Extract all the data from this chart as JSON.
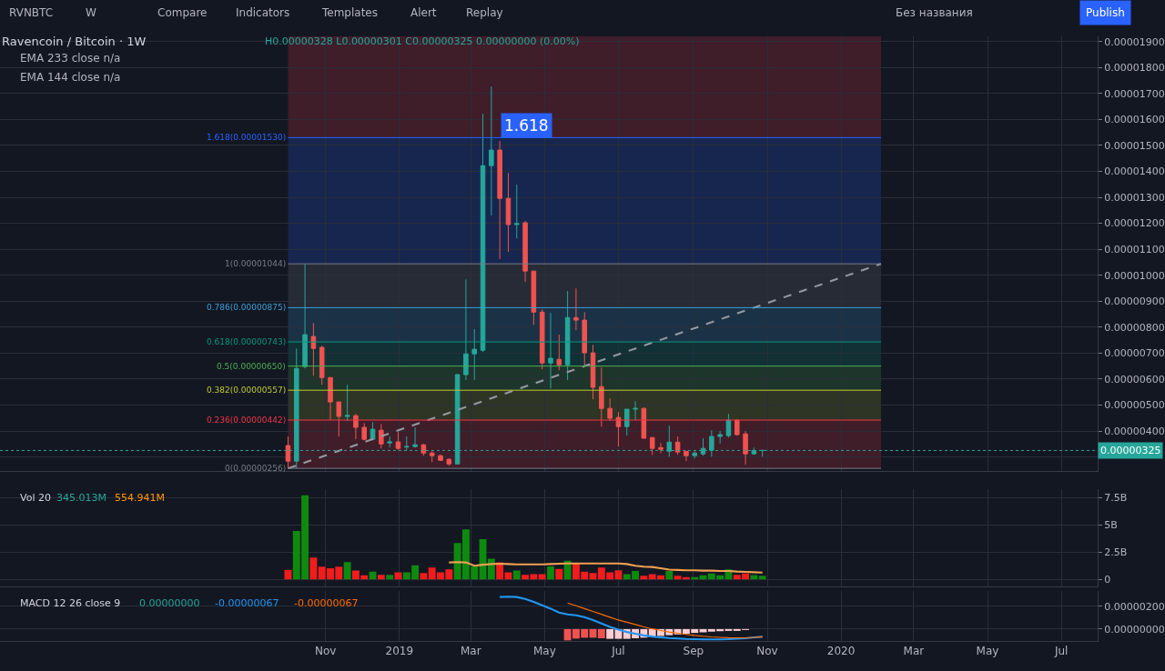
{
  "chart_data": [
    {
      "type": "candlestick",
      "title": "Ravencoin / Bitcoin · 1W",
      "subtitle": "H0.00000328 L0.00000301 C0.00000325 0.00000000 (0.00%)",
      "annotations": [
        "RVNBTC",
        "W",
        "Compare",
        "Indicators",
        "Templates",
        "Alert",
        "Replay",
        "Без названия",
        "Publish",
        "EMA 233 close n/a",
        "EMA 144 close n/a",
        "1.618"
      ],
      "x": [
        "2018-10-01",
        "2018-10-08",
        "2018-10-15",
        "2018-10-22",
        "2018-10-29",
        "2018-11-05",
        "2018-11-12",
        "2018-11-19",
        "2018-11-26",
        "2018-12-03",
        "2018-12-10",
        "2018-12-17",
        "2018-12-24",
        "2018-12-31",
        "2019-01-07",
        "2019-01-14",
        "2019-01-21",
        "2019-01-28",
        "2019-02-04",
        "2019-02-11",
        "2019-02-18",
        "2019-02-25",
        "2019-03-04",
        "2019-03-11",
        "2019-03-18",
        "2019-03-25",
        "2019-04-01",
        "2019-04-08",
        "2019-04-15",
        "2019-04-22",
        "2019-04-29",
        "2019-05-06",
        "2019-05-13",
        "2019-05-20",
        "2019-05-27",
        "2019-06-03",
        "2019-06-10",
        "2019-06-17",
        "2019-06-24",
        "2019-07-01",
        "2019-07-08",
        "2019-07-15",
        "2019-07-22",
        "2019-07-29",
        "2019-08-05",
        "2019-08-12",
        "2019-08-19",
        "2019-08-26",
        "2019-09-02",
        "2019-09-09",
        "2019-09-16",
        "2019-09-23",
        "2019-09-30",
        "2019-10-07",
        "2019-10-14",
        "2019-10-21",
        "2019-10-28"
      ],
      "ohlc": [
        [
          3.44e-06,
          3.79e-06,
          2.56e-06,
          2.84e-06
        ],
        [
          2.84e-06,
          7.18e-06,
          2.56e-06,
          6.41e-06
        ],
        [
          6.48e-06,
          1.044e-05,
          6.41e-06,
          7.71e-06
        ],
        [
          7.64e-06,
          8.16e-06,
          6.13e-06,
          7.18e-06
        ],
        [
          7.22e-06,
          7.29e-06,
          5.78e-06,
          6.06e-06
        ],
        [
          6.06e-06,
          6.06e-06,
          4.42e-06,
          5.12e-06
        ],
        [
          5.12e-06,
          5.12e-06,
          3.79e-06,
          4.56e-06
        ],
        [
          4.56e-06,
          5.78e-06,
          4.38e-06,
          4.6e-06
        ],
        [
          4.59e-06,
          4.66e-06,
          3.68e-06,
          4.14e-06
        ],
        [
          4.14e-06,
          4.3e-06,
          3.64e-06,
          3.68e-06
        ],
        [
          3.68e-06,
          4.34e-06,
          3.64e-06,
          4.07e-06
        ],
        [
          4.03e-06,
          4.27e-06,
          3.33e-06,
          3.5e-06
        ],
        [
          3.54e-06,
          3.79e-06,
          3.36e-06,
          3.58e-06
        ],
        [
          3.58e-06,
          3.96e-06,
          3.26e-06,
          3.33e-06
        ],
        [
          3.38e-06,
          3.79e-06,
          3.26e-06,
          3.4e-06
        ],
        [
          3.4e-06,
          4.14e-06,
          3.36e-06,
          3.47e-06
        ],
        [
          3.47e-06,
          3.5e-06,
          3.05e-06,
          3.15e-06
        ],
        [
          3.15e-06,
          3.26e-06,
          2.8e-06,
          3.05e-06
        ],
        [
          3.05e-06,
          3.08e-06,
          2.84e-06,
          2.87e-06
        ],
        [
          2.91e-06,
          2.95e-06,
          2.66e-06,
          2.73e-06
        ],
        [
          2.73e-06,
          6.2e-06,
          2.7e-06,
          6.17e-06
        ],
        [
          6.17e-06,
          9.84e-06,
          5.96e-06,
          6.97e-06
        ],
        [
          6.97e-06,
          7.92e-06,
          5.96e-06,
          7.15e-06
        ],
        [
          7.11e-06,
          1.622e-05,
          7.04e-06,
          1.422e-05
        ],
        [
          1.422e-05,
          1.727e-05,
          1.23e-05,
          1.482e-05
        ],
        [
          1.482e-05,
          1.517e-05,
          1.062e-05,
          1.296e-05
        ],
        [
          1.296e-05,
          1.394e-05,
          1.09e-05,
          1.195e-05
        ],
        [
          1.195e-05,
          1.349e-05,
          1.142e-05,
          1.199e-05
        ],
        [
          1.202e-05,
          1.209e-05,
          9.74e-06,
          1.016e-05
        ],
        [
          1.016e-05,
          1.016e-05,
          8.09e-06,
          8.58e-06
        ],
        [
          8.58e-06,
          8.69e-06,
          6.38e-06,
          6.62e-06
        ],
        [
          6.62e-06,
          8.55e-06,
          5.64e-06,
          6.8e-06
        ],
        [
          6.76e-06,
          7.71e-06,
          6.34e-06,
          6.55e-06
        ],
        [
          6.55e-06,
          9.39e-06,
          5.96e-06,
          8.37e-06
        ],
        [
          8.37e-06,
          9.49e-06,
          7.88e-06,
          8.27e-06
        ],
        [
          8.27e-06,
          8.58e-06,
          6.48e-06,
          7.01e-06
        ],
        [
          7.01e-06,
          7.32e-06,
          5.22e-06,
          5.68e-06
        ],
        [
          5.71e-06,
          6.45e-06,
          4.17e-06,
          4.87e-06
        ],
        [
          4.87e-06,
          5.26e-06,
          4.38e-06,
          4.49e-06
        ],
        [
          4.52e-06,
          4.73e-06,
          3.4e-06,
          4.17e-06
        ],
        [
          4.17e-06,
          4.84e-06,
          3.82e-06,
          4.84e-06
        ],
        [
          4.84e-06,
          5.15e-06,
          4.42e-06,
          4.87e-06
        ],
        [
          4.87e-06,
          4.91e-06,
          3.72e-06,
          3.72e-06
        ],
        [
          3.75e-06,
          3.75e-06,
          3.08e-06,
          3.33e-06
        ],
        [
          3.36e-06,
          3.54e-06,
          3.15e-06,
          3.29e-06
        ],
        [
          3.22e-06,
          4.21e-06,
          3.01e-06,
          3.57e-06
        ],
        [
          3.57e-06,
          3.79e-06,
          3.08e-06,
          3.19e-06
        ],
        [
          3.22e-06,
          3.22e-06,
          2.84e-06,
          3.05e-06
        ],
        [
          3.05e-06,
          3.22e-06,
          2.94e-06,
          3.15e-06
        ],
        [
          3.12e-06,
          3.72e-06,
          3.05e-06,
          3.33e-06
        ],
        [
          3.26e-06,
          4.03e-06,
          3.01e-06,
          3.79e-06
        ],
        [
          3.79e-06,
          4e-06,
          3.51e-06,
          3.86e-06
        ],
        [
          3.82e-06,
          4.66e-06,
          3.75e-06,
          4.42e-06
        ],
        [
          4.42e-06,
          4.45e-06,
          3.82e-06,
          3.86e-06
        ],
        [
          3.89e-06,
          4e-06,
          2.7e-06,
          3.12e-06
        ],
        [
          3.12e-06,
          3.36e-06,
          3.08e-06,
          3.25e-06
        ],
        [
          3.25e-06,
          3.28e-06,
          3.01e-06,
          3.25e-06
        ]
      ],
      "colors": [
        "#ef5350",
        "#26a69a",
        "#26a69a",
        "#ef5350",
        "#ef5350",
        "#ef5350",
        "#ef5350",
        "#26a69a",
        "#ef5350",
        "#ef5350",
        "#26a69a",
        "#ef5350",
        "#26a69a",
        "#ef5350",
        "#26a69a",
        "#26a69a",
        "#ef5350",
        "#ef5350",
        "#ef5350",
        "#ef5350",
        "#26a69a",
        "#26a69a",
        "#26a69a",
        "#26a69a",
        "#26a69a",
        "#ef5350",
        "#ef5350",
        "#26a69a",
        "#ef5350",
        "#ef5350",
        "#ef5350",
        "#26a69a",
        "#ef5350",
        "#26a69a",
        "#ef5350",
        "#ef5350",
        "#ef5350",
        "#ef5350",
        "#ef5350",
        "#ef5350",
        "#26a69a",
        "#26a69a",
        "#ef5350",
        "#ef5350",
        "#ef5350",
        "#26a69a",
        "#ef5350",
        "#ef5350",
        "#26a69a",
        "#26a69a",
        "#26a69a",
        "#26a69a",
        "#26a69a",
        "#ef5350",
        "#ef5350",
        "#26a69a",
        "#26a69a"
      ],
      "series": [
        {
          "type": "line",
          "x": [
            "2018-10-01",
            "2020-02-03"
          ],
          "values": [
            2.56e-06,
            1.044e-05
          ],
          "color": "#9598a1",
          "line_style": "dashed"
        }
      ],
      "ref_lines": [
        {
          "axis": "y",
          "value": 2.56e-06,
          "label": "0(0.00000256)",
          "color": "#787b86"
        },
        {
          "axis": "y",
          "value": 4.42e-06,
          "label": "0.236(0.00000442)",
          "color": "#f23645"
        },
        {
          "axis": "y",
          "value": 5.57e-06,
          "label": "0.382(0.00000557)",
          "color": "#c0ca33"
        },
        {
          "axis": "y",
          "value": 6.5e-06,
          "label": "0.5(0.00000650)",
          "color": "#4caf50"
        },
        {
          "axis": "y",
          "value": 7.43e-06,
          "label": "0.618(0.00000743)",
          "color": "#089981"
        },
        {
          "axis": "y",
          "value": 8.75e-06,
          "label": "0.786(0.00000875)",
          "color": "#3ca0d8"
        },
        {
          "axis": "y",
          "value": 1.044e-05,
          "label": "1(0.00001044)",
          "color": "#787b86"
        },
        {
          "axis": "y",
          "value": 1.53e-05,
          "label": "1.618(0.00001530)",
          "color": "#2962ff"
        },
        {
          "axis": "y",
          "value": 3.25e-06,
          "label": "0.00000325",
          "color": "#26a69a",
          "line_style": "dotted"
        }
      ],
      "bands": [
        {
          "axis": "y",
          "from": 2.56e-06,
          "to": 4.42e-06,
          "color": "#f23645"
        },
        {
          "axis": "y",
          "from": 4.42e-06,
          "to": 5.57e-06,
          "color": "#9ab030"
        },
        {
          "axis": "y",
          "from": 5.57e-06,
          "to": 6.5e-06,
          "color": "#4caf50"
        },
        {
          "axis": "y",
          "from": 6.5e-06,
          "to": 7.43e-06,
          "color": "#089981"
        },
        {
          "axis": "y",
          "from": 7.43e-06,
          "to": 8.75e-06,
          "color": "#3ca0d8"
        },
        {
          "axis": "y",
          "from": 8.75e-06,
          "to": 1.044e-05,
          "color": "#787b86"
        },
        {
          "axis": "y",
          "from": 1.044e-05,
          "to": 1.53e-05,
          "color": "#2962ff"
        },
        {
          "axis": "y",
          "from": 1.53e-05,
          "to": 1.92e-05,
          "color": "#f23645"
        }
      ],
      "xlim": [
        "2018-02-05",
        "2020-07-31"
      ],
      "xticks": [
        {
          "value": "2018-11-01",
          "label": null
        },
        {
          "value": "2019-01-01",
          "label": null
        },
        {
          "value": "2019-03-01",
          "label": null
        },
        {
          "value": "2019-05-01",
          "label": null
        },
        {
          "value": "2019-07-01",
          "label": null
        },
        {
          "value": "2019-09-01",
          "label": null
        },
        {
          "value": "2019-11-01",
          "label": null
        },
        {
          "value": "2020-01-01",
          "label": null
        },
        {
          "value": "2020-03-01",
          "label": null
        },
        {
          "value": "2020-05-01",
          "label": null
        },
        {
          "value": "2020-07-01",
          "label": null
        }
      ],
      "ylim": [
        2.45e-06,
        1.92e-05
      ],
      "yticks": [
        {
          "value": 3e-06,
          "label": null
        },
        {
          "value": 4e-06,
          "label": "0.00000400"
        },
        {
          "value": 5e-06,
          "label": "0.00000500"
        },
        {
          "value": 6e-06,
          "label": "0.00000600"
        },
        {
          "value": 7e-06,
          "label": "0.00000700"
        },
        {
          "value": 8e-06,
          "label": "0.00000800"
        },
        {
          "value": 9e-06,
          "label": "0.00000900"
        },
        {
          "value": 1e-05,
          "label": "0.00001000"
        },
        {
          "value": 1.1e-05,
          "label": "0.00001100"
        },
        {
          "value": 1.2e-05,
          "label": "0.00001200"
        },
        {
          "value": 1.3e-05,
          "label": "0.00001300"
        },
        {
          "value": 1.4e-05,
          "label": "0.00001400"
        },
        {
          "value": 1.5e-05,
          "label": "0.00001500"
        },
        {
          "value": 1.6e-05,
          "label": "0.00001600"
        },
        {
          "value": 1.7e-05,
          "label": "0.00001700"
        },
        {
          "value": 1.8e-05,
          "label": "0.00001800"
        },
        {
          "value": 1.9e-05,
          "label": "0.00001900"
        }
      ],
      "grid": true,
      "tick_labels": "y"
    },
    {
      "type": "bar",
      "title": "Vol 20",
      "annotations": [
        "345.013M",
        "554.941M"
      ],
      "x": [
        "2018-10-01",
        "2018-10-08",
        "2018-10-15",
        "2018-10-22",
        "2018-10-29",
        "2018-11-05",
        "2018-11-12",
        "2018-11-19",
        "2018-11-26",
        "2018-12-03",
        "2018-12-10",
        "2018-12-17",
        "2018-12-24",
        "2018-12-31",
        "2019-01-07",
        "2019-01-14",
        "2019-01-21",
        "2019-01-28",
        "2019-02-04",
        "2019-02-11",
        "2019-02-18",
        "2019-02-25",
        "2019-03-04",
        "2019-03-11",
        "2019-03-18",
        "2019-03-25",
        "2019-04-01",
        "2019-04-08",
        "2019-04-15",
        "2019-04-22",
        "2019-04-29",
        "2019-05-06",
        "2019-05-13",
        "2019-05-20",
        "2019-05-27",
        "2019-06-03",
        "2019-06-10",
        "2019-06-17",
        "2019-06-24",
        "2019-07-01",
        "2019-07-08",
        "2019-07-15",
        "2019-07-22",
        "2019-07-29",
        "2019-08-05",
        "2019-08-12",
        "2019-08-19",
        "2019-08-26",
        "2019-09-02",
        "2019-09-09",
        "2019-09-16",
        "2019-09-23",
        "2019-09-30",
        "2019-10-07",
        "2019-10-14",
        "2019-10-21",
        "2019-10-28"
      ],
      "series": [
        {
          "type": "bar",
          "values": [
            860000000.0,
            4430000000.0,
            7710000000.0,
            1990000000.0,
            1160000000.0,
            1010000000.0,
            1160000000.0,
            1580000000.0,
            800000000.0,
            360000000.0,
            710000000.0,
            420000000.0,
            420000000.0,
            650000000.0,
            650000000.0,
            1280000000.0,
            570000000.0,
            1070000000.0,
            650000000.0,
            920000000.0,
            3330000000.0,
            4580000000.0,
            1190000000.0,
            3690000000.0,
            1900000000.0,
            1550000000.0,
            650000000.0,
            800000000.0,
            420000000.0,
            480000000.0,
            480000000.0,
            1190000000.0,
            950000000.0,
            1700000000.0,
            1460000000.0,
            710000000.0,
            570000000.0,
            1070000000.0,
            650000000.0,
            830000000.0,
            480000000.0,
            770000000.0,
            330000000.0,
            480000000.0,
            360000000.0,
            770000000.0,
            330000000.0,
            210000000.0,
            210000000.0,
            360000000.0,
            540000000.0,
            360000000.0,
            920000000.0,
            420000000.0,
            540000000.0,
            390000000.0,
            330000000.0
          ],
          "colors": [
            "#f21c1c",
            "#0e8a0e",
            "#0e8a0e",
            "#f21c1c",
            "#f21c1c",
            "#f21c1c",
            "#f21c1c",
            "#0e8a0e",
            "#f21c1c",
            "#f21c1c",
            "#0e8a0e",
            "#f21c1c",
            "#0e8a0e",
            "#f21c1c",
            "#0e8a0e",
            "#0e8a0e",
            "#f21c1c",
            "#f21c1c",
            "#f21c1c",
            "#f21c1c",
            "#0e8a0e",
            "#0e8a0e",
            "#0e8a0e",
            "#0e8a0e",
            "#0e8a0e",
            "#f21c1c",
            "#f21c1c",
            "#0e8a0e",
            "#f21c1c",
            "#f21c1c",
            "#f21c1c",
            "#0e8a0e",
            "#f21c1c",
            "#0e8a0e",
            "#f21c1c",
            "#f21c1c",
            "#f21c1c",
            "#f21c1c",
            "#f21c1c",
            "#f21c1c",
            "#0e8a0e",
            "#0e8a0e",
            "#f21c1c",
            "#f21c1c",
            "#f21c1c",
            "#0e8a0e",
            "#f21c1c",
            "#f21c1c",
            "#0e8a0e",
            "#0e8a0e",
            "#0e8a0e",
            "#0e8a0e",
            "#0e8a0e",
            "#f21c1c",
            "#f21c1c",
            "#0e8a0e",
            "#0e8a0e"
          ]
        },
        {
          "type": "line",
          "color": "#f0a050",
          "values": [
            null,
            null,
            null,
            null,
            null,
            null,
            null,
            null,
            null,
            null,
            null,
            null,
            null,
            null,
            null,
            null,
            null,
            null,
            null,
            1550000000.0,
            1580000000.0,
            1550000000.0,
            1250000000.0,
            1340000000.0,
            1400000000.0,
            1430000000.0,
            1400000000.0,
            1370000000.0,
            1370000000.0,
            1370000000.0,
            1370000000.0,
            1400000000.0,
            1430000000.0,
            1460000000.0,
            1460000000.0,
            1460000000.0,
            1460000000.0,
            1460000000.0,
            1460000000.0,
            1460000000.0,
            1400000000.0,
            1250000000.0,
            1160000000.0,
            1130000000.0,
            1010000000.0,
            890000000.0,
            860000000.0,
            830000000.0,
            830000000.0,
            800000000.0,
            800000000.0,
            770000000.0,
            770000000.0,
            710000000.0,
            680000000.0,
            650000000.0,
            620000000.0
          ]
        }
      ],
      "xlim": [
        "2018-02-05",
        "2020-07-31"
      ],
      "xticks": [
        {
          "value": "2018-11-01",
          "label": null
        },
        {
          "value": "2019-01-01",
          "label": null
        },
        {
          "value": "2019-03-01",
          "label": null
        },
        {
          "value": "2019-05-01",
          "label": null
        },
        {
          "value": "2019-07-01",
          "label": null
        },
        {
          "value": "2019-09-01",
          "label": null
        },
        {
          "value": "2019-11-01",
          "label": null
        },
        {
          "value": "2020-01-01",
          "label": null
        },
        {
          "value": "2020-03-01",
          "label": null
        },
        {
          "value": "2020-05-01",
          "label": null
        },
        {
          "value": "2020-07-01",
          "label": null
        }
      ],
      "ylim": [
        -670000000.0,
        8250000000.0
      ],
      "yticks": [
        0,
        {
          "value": 2500000000.0,
          "label": "2.5B"
        },
        {
          "value": 5000000000.0,
          "label": "5B"
        },
        {
          "value": 7500000000.0,
          "label": "7.5B"
        }
      ],
      "grid": true,
      "tick_labels": "y"
    },
    {
      "type": "bar",
      "title": "MACD 12 26 close 9",
      "annotations": [
        "0.00000000",
        "-0.00000067",
        "-0.00000067"
      ],
      "x": [
        "2019-03-25",
        "2019-04-01",
        "2019-04-08",
        "2019-04-15",
        "2019-04-22",
        "2019-04-29",
        "2019-05-06",
        "2019-05-13",
        "2019-05-20",
        "2019-05-27",
        "2019-06-03",
        "2019-06-10",
        "2019-06-17",
        "2019-06-24",
        "2019-07-01",
        "2019-07-08",
        "2019-07-15",
        "2019-07-22",
        "2019-07-29",
        "2019-08-05",
        "2019-08-12",
        "2019-08-19",
        "2019-08-26",
        "2019-09-02",
        "2019-09-09",
        "2019-09-16",
        "2019-09-23",
        "2019-09-30",
        "2019-10-07",
        "2019-10-14",
        "2019-10-21",
        "2019-10-28"
      ],
      "series": [
        {
          "type": "bar",
          "values": [
            null,
            null,
            null,
            null,
            null,
            null,
            null,
            null,
            -9.9e-07,
            -8.3e-07,
            -7.5e-07,
            -7.5e-07,
            -8e-07,
            -8.5e-07,
            -8.5e-07,
            -8.5e-07,
            -8e-07,
            -7.5e-07,
            -6.7e-07,
            -6e-07,
            -5.3e-07,
            -4.6e-07,
            -4e-07,
            -3.3e-07,
            -2.8e-07,
            -2.2e-07,
            -1.8e-07,
            -1.3e-07,
            -8e-08,
            -4e-08,
            0,
            0
          ],
          "colors": [
            "#ef5350",
            "#ef5350",
            "#ef5350",
            "#ef5350",
            "#ef5350",
            "#ef5350",
            "#ef5350",
            "#ef5350",
            "#ef5350",
            "#ef5350",
            "#ef5350",
            "#ef5350",
            "#ef5350",
            "#ffcdd2",
            "#ffcdd2",
            "#ffcdd2",
            "#ffcdd2",
            "#ffcdd2",
            "#ffcdd2",
            "#ffcdd2",
            "#ffcdd2",
            "#ffcdd2",
            "#ffcdd2",
            "#ffcdd2",
            "#ffcdd2",
            "#ffcdd2",
            "#ffcdd2",
            "#ffcdd2",
            "#ffcdd2",
            "#ffcdd2",
            "#ffcdd2",
            "#ffcdd2"
          ]
        },
        {
          "type": "line",
          "color": "#2196f3",
          "values": [
            2.82e-06,
            2.85e-06,
            2.82e-06,
            2.65e-06,
            2.4e-06,
            2.1e-06,
            1.8e-06,
            1.45e-06,
            1.3e-06,
            1.22e-06,
            1.05e-06,
            8e-07,
            5e-07,
            2e-07,
            -5e-08,
            -2.5e-07,
            -4e-07,
            -5.5e-07,
            -6.5e-07,
            -7.2e-07,
            -7.8e-07,
            -8.2e-07,
            -8.6e-07,
            -8.8e-07,
            -9e-07,
            -9e-07,
            -9e-07,
            -8.8e-07,
            -8.4e-07,
            -8e-07,
            -7.2e-07,
            -6.7e-07
          ]
        },
        {
          "type": "line",
          "color": "#ff6d00",
          "values": [
            null,
            null,
            null,
            null,
            null,
            null,
            null,
            null,
            2.29e-06,
            2.05e-06,
            1.8e-06,
            1.55e-06,
            1.3e-06,
            1.05e-06,
            8e-07,
            6e-07,
            4e-07,
            2e-07,
            2e-08,
            -1.2e-07,
            -2.5e-07,
            -3.6e-07,
            -4.6e-07,
            -5.5e-07,
            -6.2e-07,
            -6.8e-07,
            -7.2e-07,
            -7.5e-07,
            -7.6e-07,
            -7.6e-07,
            -7.2e-07,
            -6.7e-07
          ]
        }
      ],
      "xlim": [
        "2018-02-05",
        "2020-07-31"
      ],
      "xticks": [
        {
          "value": "2018-11-01",
          "label": "Nov"
        },
        {
          "value": "2019-01-01",
          "label": "2019"
        },
        {
          "value": "2019-03-01",
          "label": "Mar"
        },
        {
          "value": "2019-05-01",
          "label": "May"
        },
        {
          "value": "2019-07-01",
          "label": "Jul"
        },
        {
          "value": "2019-09-01",
          "label": "Sep"
        },
        {
          "value": "2019-11-01",
          "label": "Nov"
        },
        {
          "value": "2020-01-01",
          "label": "2020"
        },
        {
          "value": "2020-03-01",
          "label": "Mar"
        },
        {
          "value": "2020-05-01",
          "label": "May"
        },
        {
          "value": "2020-07-01",
          "label": "Jul"
        }
      ],
      "ylim": [
        -1.04e-06,
        3.36e-06
      ],
      "yticks": [
        {
          "value": 0,
          "label": "0.00000000"
        },
        {
          "value": 2e-06,
          "label": "0.00000200"
        }
      ],
      "grid": true
    }
  ]
}
